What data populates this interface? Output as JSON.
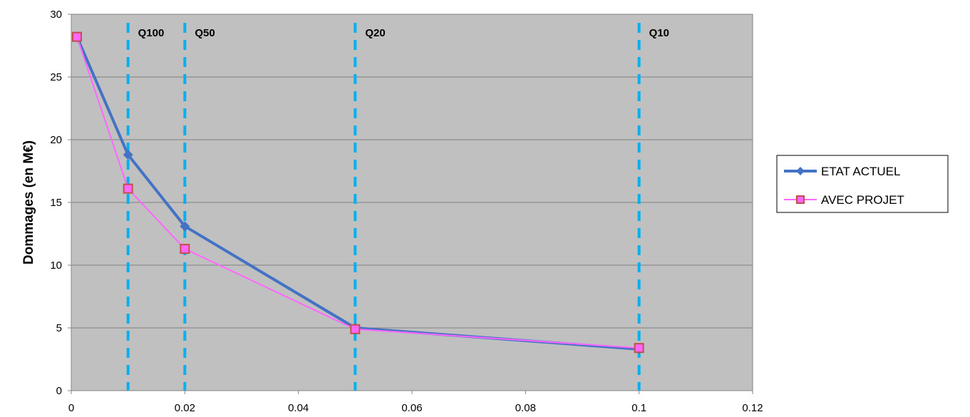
{
  "chart_data": {
    "type": "line",
    "title": "",
    "xlabel": "",
    "ylabel": "Dommages (en M€)",
    "xlim": [
      0,
      0.12
    ],
    "ylim": [
      0,
      30
    ],
    "x_ticks": [
      "0",
      "0.02",
      "0.04",
      "0.06",
      "0.08",
      "0.1",
      "0.12"
    ],
    "y_ticks": [
      "0",
      "5",
      "10",
      "15",
      "20",
      "25",
      "30"
    ],
    "grid": "horizontal",
    "legend_position": "right",
    "reference_lines": [
      {
        "label": "Q100",
        "x": 0.01
      },
      {
        "label": "Q50",
        "x": 0.02
      },
      {
        "label": "Q20",
        "x": 0.05
      },
      {
        "label": "Q10",
        "x": 0.1
      }
    ],
    "series": [
      {
        "name": "ETAT ACTUEL",
        "color": "#4472c4",
        "marker": "diamond",
        "points": [
          [
            0.001,
            28.2
          ],
          [
            0.01,
            18.8
          ],
          [
            0.02,
            13.1
          ],
          [
            0.05,
            5.0
          ],
          [
            0.1,
            3.3
          ]
        ]
      },
      {
        "name": "AVEC PROJET",
        "color": "#ff66ff",
        "marker": "square",
        "points": [
          [
            0.001,
            28.2
          ],
          [
            0.01,
            16.1
          ],
          [
            0.02,
            11.3
          ],
          [
            0.05,
            4.9
          ],
          [
            0.1,
            3.4
          ]
        ]
      }
    ],
    "colors": {
      "plot_background": "#c0c0c0",
      "grid": "#808080",
      "reference_line": "#00b0f0",
      "square_marker_edge": "#c0504d"
    }
  }
}
